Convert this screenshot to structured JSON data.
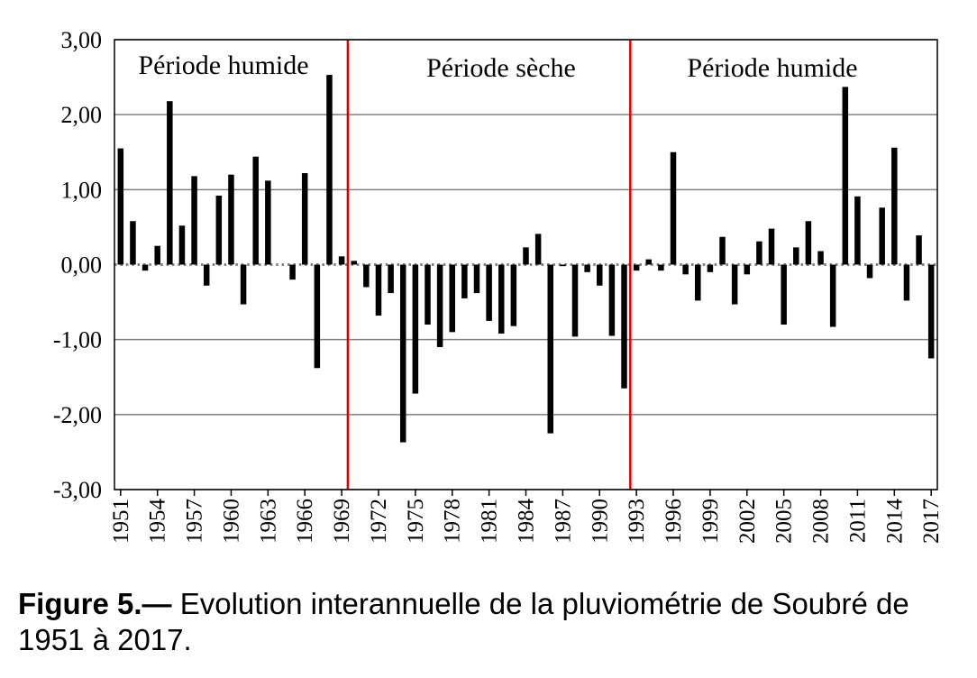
{
  "chart_data": {
    "type": "bar",
    "y_tick_labels": [
      "3,00",
      "2,00",
      "1,00",
      "0,00",
      "-1,00",
      "-2,00",
      "-3,00"
    ],
    "ylim": [
      -3,
      3
    ],
    "grid": true,
    "colors": {
      "bars": "#000000",
      "period_divider": "#e00000",
      "gridline": "#808080"
    },
    "x_tick_labels": [
      "1951",
      "1954",
      "1957",
      "1960",
      "1963",
      "1966",
      "1969",
      "1972",
      "1975",
      "1978",
      "1981",
      "1984",
      "1987",
      "1990",
      "1993",
      "1996",
      "1999",
      "2002",
      "2005",
      "2008",
      "2011",
      "2014",
      "2017"
    ],
    "years": [
      1951,
      1952,
      1953,
      1954,
      1955,
      1956,
      1957,
      1958,
      1959,
      1960,
      1961,
      1962,
      1963,
      1964,
      1965,
      1966,
      1967,
      1968,
      1969,
      1970,
      1971,
      1972,
      1973,
      1974,
      1975,
      1976,
      1977,
      1978,
      1979,
      1980,
      1981,
      1982,
      1983,
      1984,
      1985,
      1986,
      1987,
      1988,
      1989,
      1990,
      1991,
      1992,
      1993,
      1994,
      1995,
      1996,
      1997,
      1998,
      1999,
      2000,
      2001,
      2002,
      2003,
      2004,
      2005,
      2006,
      2007,
      2008,
      2009,
      2010,
      2011,
      2012,
      2013,
      2014,
      2015,
      2016,
      2017
    ],
    "values": [
      1.55,
      0.58,
      -0.08,
      0.25,
      2.18,
      0.52,
      1.18,
      -0.28,
      0.92,
      1.2,
      -0.53,
      1.44,
      1.12,
      0.0,
      -0.2,
      1.22,
      -1.38,
      2.53,
      0.11,
      0.05,
      -0.3,
      -0.68,
      -0.38,
      -2.37,
      -1.72,
      -0.8,
      -1.1,
      -0.9,
      -0.45,
      -0.38,
      -0.75,
      -0.92,
      -0.82,
      0.23,
      0.41,
      -2.25,
      -0.02,
      -0.96,
      -0.1,
      -0.28,
      -0.95,
      -1.65,
      -0.08,
      0.07,
      -0.08,
      1.5,
      -0.13,
      -0.48,
      -0.1,
      0.37,
      -0.53,
      -0.13,
      0.31,
      0.48,
      -0.8,
      0.23,
      0.58,
      0.18,
      -0.83,
      2.37,
      0.91,
      -0.18,
      0.76,
      1.56,
      -0.48,
      0.39,
      -1.25
    ],
    "period_dividers": [
      1969.5,
      1992.5
    ],
    "annotations": [
      "Période humide",
      "Période sèche",
      "Période humide"
    ]
  },
  "caption": {
    "label": "Figure 5.—",
    "text": " Evolution interannuelle de la pluviométrie de Soubré de 1951 à 2017."
  }
}
